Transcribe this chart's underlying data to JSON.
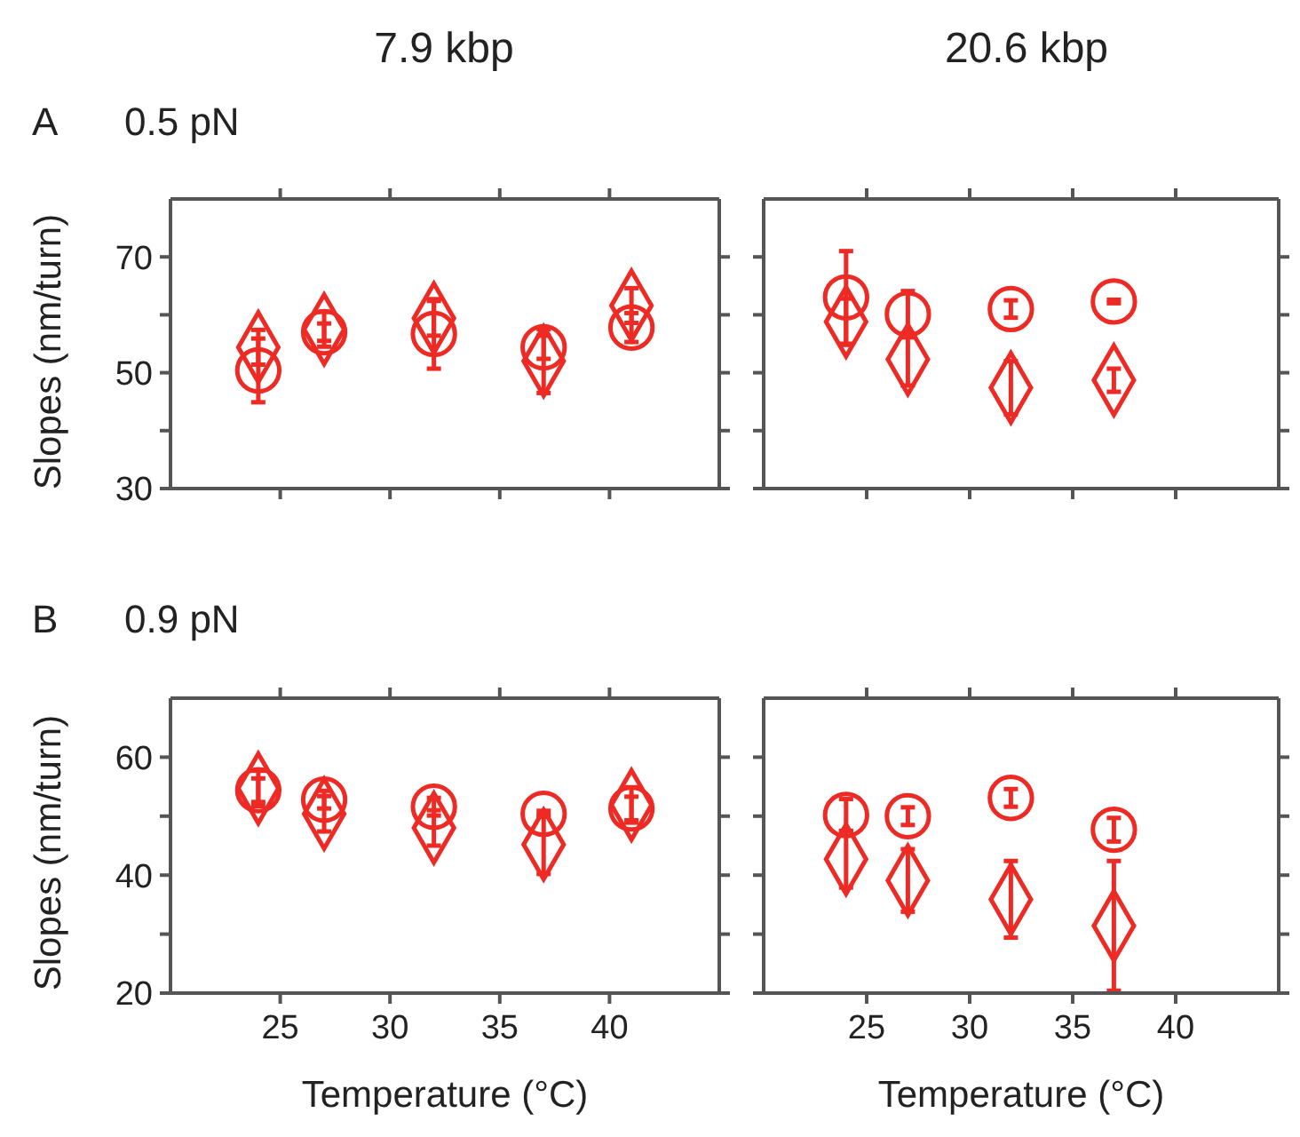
{
  "chart_data": [
    {
      "type": "scatter",
      "title": "7.9 kbp",
      "annotations": [
        "A",
        "0.5 pN"
      ],
      "ylabel": "Slopes (nm/turn)",
      "xlim": [
        20,
        45
      ],
      "xticks": [
        25,
        30,
        35,
        40
      ],
      "ylim": [
        30,
        80
      ],
      "yticks": [
        30,
        {
          "value": 40,
          "label": null
        },
        50,
        {
          "value": 60,
          "label": null
        },
        70
      ],
      "tick_labels": "y",
      "series": [
        {
          "color": "#ee2a24",
          "marker": "circle",
          "x": [
            24,
            27,
            32,
            37,
            41
          ],
          "values": [
            50.4,
            57,
            56.7,
            54.4,
            57.8
          ],
          "errors": [
            5.5,
            1.5,
            6,
            2,
            2.5
          ]
        },
        {
          "color": "#ee2a24",
          "marker": "diamond",
          "x": [
            24,
            27,
            32,
            37,
            41
          ],
          "values": [
            54.4,
            57.5,
            59.4,
            52,
            61.6
          ],
          "errors": [
            3,
            3,
            3,
            5.5,
            3
          ]
        }
      ]
    },
    {
      "type": "scatter",
      "title": "20.6 kbp",
      "xlim": [
        20,
        45
      ],
      "xticks": [
        25,
        30,
        35,
        40
      ],
      "ylim": [
        30,
        80
      ],
      "yticks": [
        30,
        {
          "value": 40,
          "label": null
        },
        50,
        {
          "value": 60,
          "label": null
        },
        70
      ],
      "tick_labels": false,
      "series": [
        {
          "color": "#ee2a24",
          "marker": "circle",
          "x": [
            24,
            27,
            32,
            37
          ],
          "values": [
            63,
            60.1,
            61,
            62.3
          ],
          "errors": [
            8,
            4,
            1.5,
            0.3
          ]
        },
        {
          "color": "#ee2a24",
          "marker": "diamond",
          "x": [
            24,
            27,
            32,
            37
          ],
          "values": [
            58.8,
            52.3,
            47.4,
            48.7
          ],
          "errors": [
            4,
            4.5,
            4.6,
            2
          ]
        }
      ]
    },
    {
      "type": "scatter",
      "annotations": [
        "B",
        "0.9 pN"
      ],
      "ylabel": "Slopes (nm/turn)",
      "xlabel": "Temperature (°C)",
      "xlim": [
        20,
        45
      ],
      "xticks": [
        25,
        30,
        35,
        40
      ],
      "ylim": [
        20,
        70
      ],
      "yticks": [
        20,
        {
          "value": 30,
          "label": null
        },
        40,
        {
          "value": 50,
          "label": null
        },
        60
      ],
      "series": [
        {
          "color": "#ee2a24",
          "marker": "circle",
          "x": [
            24,
            27,
            32,
            37,
            41
          ],
          "values": [
            54.4,
            52.8,
            51.6,
            50.4,
            51.3
          ],
          "errors": [
            2,
            1.5,
            1.5,
            0.5,
            2
          ]
        },
        {
          "color": "#ee2a24",
          "marker": "diamond",
          "x": [
            24,
            27,
            32,
            37,
            41
          ],
          "values": [
            54.7,
            50.4,
            48,
            45.2,
            51.9
          ],
          "errors": [
            3,
            3,
            3,
            5,
            3
          ]
        }
      ]
    },
    {
      "type": "scatter",
      "xlabel": "Temperature (°C)",
      "xlim": [
        20,
        45
      ],
      "xticks": [
        25,
        30,
        35,
        40
      ],
      "ylim": [
        20,
        70
      ],
      "yticks": [
        20,
        {
          "value": 30,
          "label": null
        },
        40,
        {
          "value": 50,
          "label": null
        },
        60
      ],
      "tick_labels": "x",
      "series": [
        {
          "color": "#ee2a24",
          "marker": "circle",
          "x": [
            24,
            27,
            32,
            37
          ],
          "values": [
            50.2,
            50,
            53.1,
            47.7
          ],
          "errors": [
            2.7,
            1.5,
            1.5,
            2
          ]
        },
        {
          "color": "#ee2a24",
          "marker": "diamond",
          "x": [
            24,
            27,
            32,
            37
          ],
          "values": [
            42.7,
            39.1,
            35.9,
            31.4
          ],
          "errors": [
            4.8,
            5.3,
            6.5,
            11
          ]
        }
      ]
    }
  ]
}
